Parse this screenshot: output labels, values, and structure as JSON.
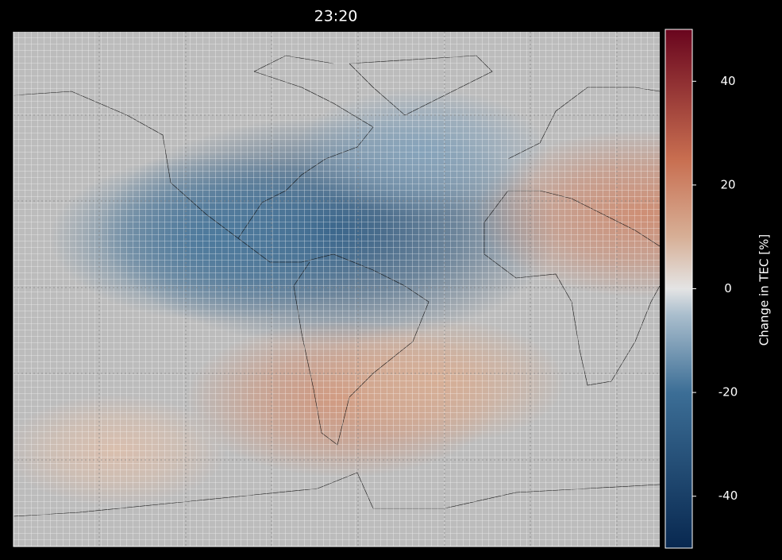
{
  "title": "23:20",
  "map": {
    "type": "heatmap",
    "xlim": [
      -135,
      55
    ],
    "ylim": [
      -70,
      80
    ],
    "blobs": [
      {
        "lon": -42,
        "lat": 22,
        "value": -30
      },
      {
        "lon": -75,
        "lat": 20,
        "value": -18
      },
      {
        "lon": -38,
        "lat": -27,
        "value": 16
      },
      {
        "lon": -10,
        "lat": -22,
        "value": 10
      },
      {
        "lon": 50,
        "lat": 27,
        "value": 18
      },
      {
        "lon": -105,
        "lat": -42,
        "value": 7
      },
      {
        "lon": -15,
        "lat": 45,
        "value": -10
      }
    ]
  },
  "colorbar": {
    "label": "Change in TEC [%]",
    "lim": [
      -50,
      50
    ],
    "ticks": [
      40,
      20,
      0,
      -20,
      -40
    ]
  }
}
